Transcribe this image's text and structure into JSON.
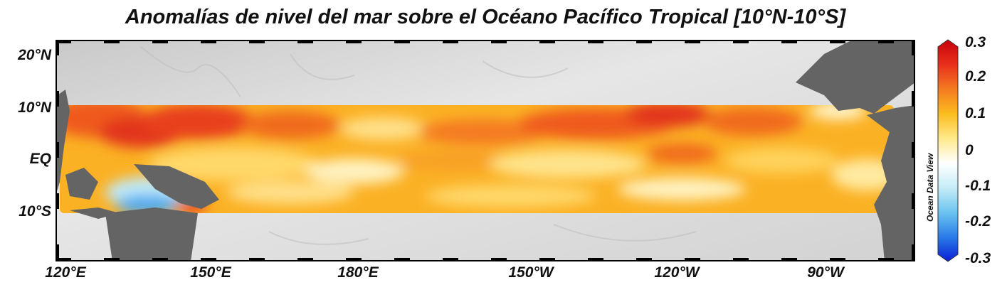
{
  "title": "Anomalías de nivel del mar sobre el Océano Pacífico Tropical [10°N-10°S]",
  "credit": "Ocean Data View",
  "map": {
    "region": "Tropical Pacific",
    "lat_range": [
      "20°N",
      "10°S"
    ],
    "lon_range": [
      "120°E",
      "80°W"
    ],
    "band": "10°N-10°S",
    "colormap": "blue-white-red",
    "land_color": "#646464",
    "shelf_color": "#d8d8d8"
  },
  "axes": {
    "lat_ticks": [
      "20°N",
      "10°N",
      "EQ",
      "10°S"
    ],
    "lon_ticks": [
      "120°E",
      "150°E",
      "180°E",
      "150°W",
      "120°W",
      "90°W"
    ]
  },
  "colorbar": {
    "min": -0.3,
    "max": 0.3,
    "ticks": [
      "0.3",
      "0.2",
      "0.1",
      "0",
      "-0.1",
      "-0.2",
      "-0.3"
    ],
    "colors": [
      "#c8000a",
      "#e8301c",
      "#f47a20",
      "#fbbc1e",
      "#ffe88a",
      "#ffffff",
      "#c6ecf7",
      "#6cc4f0",
      "#2a7ce8",
      "#0a1ed6"
    ]
  }
}
